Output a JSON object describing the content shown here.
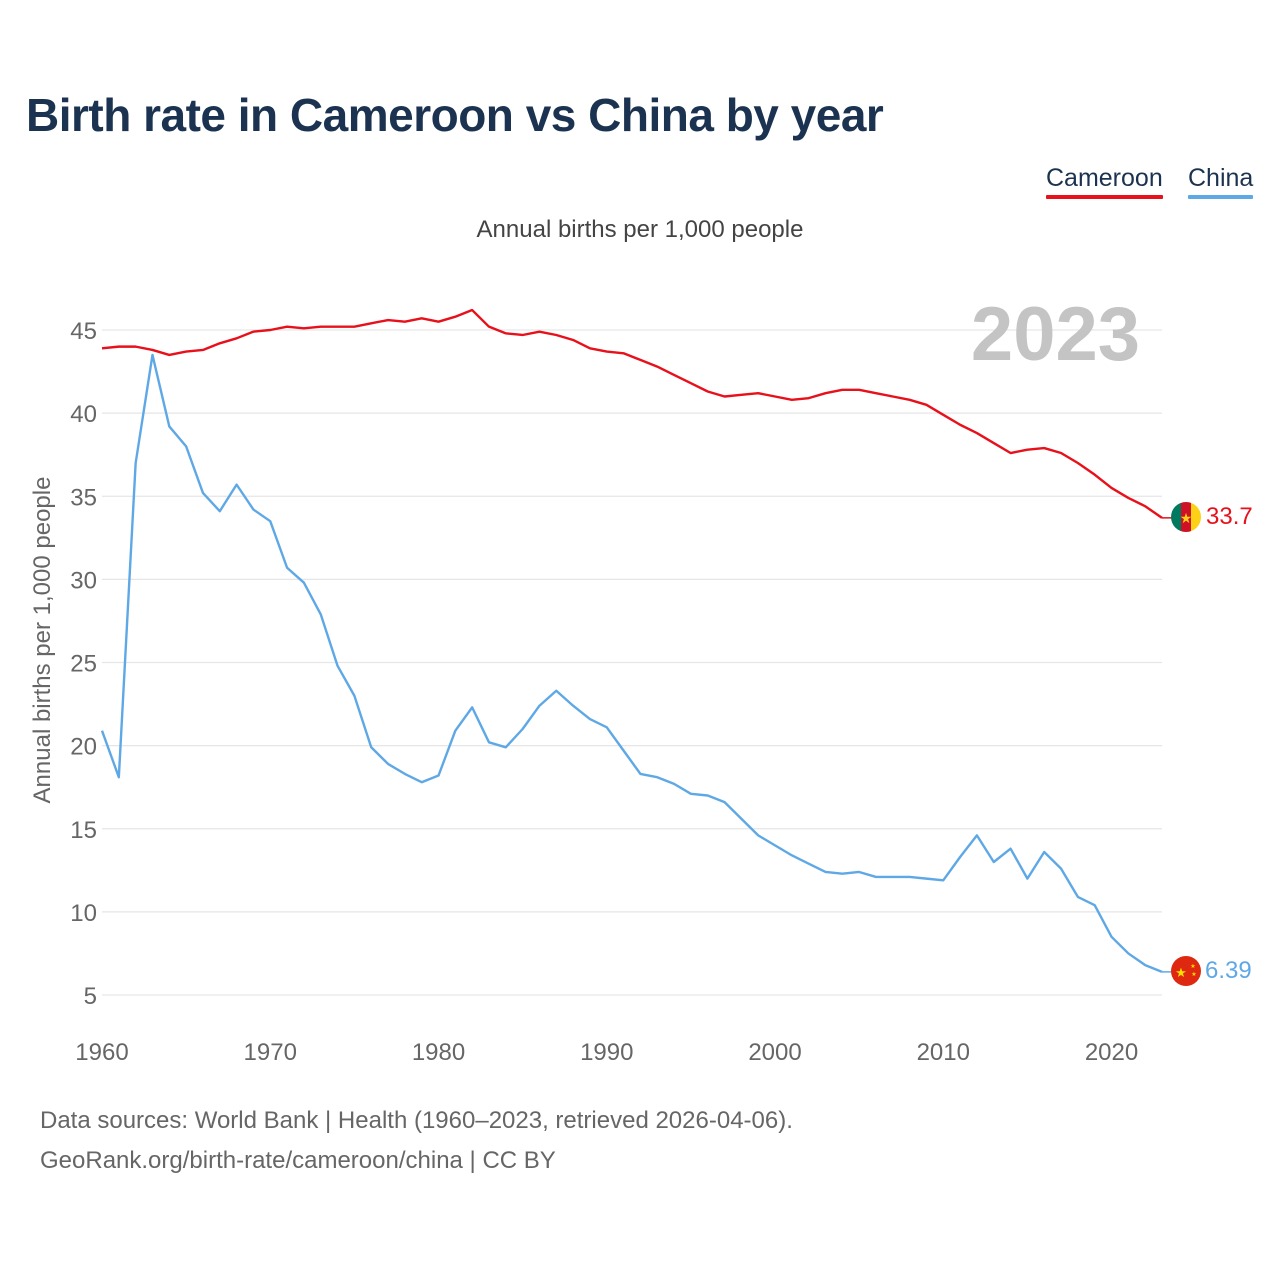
{
  "colors": {
    "title": "#1b3350",
    "cameroon": "#e8101a",
    "china": "#5fa8e6",
    "grid": "#e6e6e6",
    "axis_text": "#666666",
    "year_watermark": "#c4c4c4"
  },
  "header": {
    "title": "Birth rate in Cameroon vs China by year",
    "subtitle": "Annual births per 1,000 people"
  },
  "legend": {
    "cameroon": "Cameroon",
    "china": "China"
  },
  "footer": {
    "source": "Data sources: World Bank | Health (1960–2023, retrieved 2026-04-06).",
    "credit": "GeoRank.org/birth-rate/cameroon/china | CC BY"
  },
  "chart_data": {
    "type": "line",
    "title": "Birth rate in Cameroon vs China by year",
    "subtitle": "Annual births per 1,000 people",
    "xlabel": "",
    "ylabel": "Annual births per 1,000 people",
    "xlim": [
      1960,
      2023
    ],
    "ylim": [
      4,
      48
    ],
    "x_ticks": [
      1960,
      1970,
      1980,
      1990,
      2000,
      2010,
      2020
    ],
    "y_ticks": [
      5,
      10,
      15,
      20,
      25,
      30,
      35,
      40,
      45
    ],
    "grid": true,
    "current_year_label": "2023",
    "x": [
      1960,
      1961,
      1962,
      1963,
      1964,
      1965,
      1966,
      1967,
      1968,
      1969,
      1970,
      1971,
      1972,
      1973,
      1974,
      1975,
      1976,
      1977,
      1978,
      1979,
      1980,
      1981,
      1982,
      1983,
      1984,
      1985,
      1986,
      1987,
      1988,
      1989,
      1990,
      1991,
      1992,
      1993,
      1994,
      1995,
      1996,
      1997,
      1998,
      1999,
      2000,
      2001,
      2002,
      2003,
      2004,
      2005,
      2006,
      2007,
      2008,
      2009,
      2010,
      2011,
      2012,
      2013,
      2014,
      2015,
      2016,
      2017,
      2018,
      2019,
      2020,
      2021,
      2022,
      2023
    ],
    "series": [
      {
        "name": "Cameroon",
        "color": "#e8101a",
        "end_label": "33.7",
        "values": [
          43.9,
          44.0,
          44.0,
          43.8,
          43.5,
          43.7,
          43.8,
          44.2,
          44.5,
          44.9,
          45.0,
          45.2,
          45.1,
          45.2,
          45.2,
          45.2,
          45.4,
          45.6,
          45.5,
          45.7,
          45.5,
          45.8,
          46.2,
          45.2,
          44.8,
          44.7,
          44.9,
          44.7,
          44.4,
          43.9,
          43.7,
          43.6,
          43.2,
          42.8,
          42.3,
          41.8,
          41.3,
          41.0,
          41.1,
          41.2,
          41.0,
          40.8,
          40.9,
          41.2,
          41.4,
          41.4,
          41.2,
          41.0,
          40.8,
          40.5,
          39.9,
          39.3,
          38.8,
          38.2,
          37.6,
          37.8,
          37.9,
          37.6,
          37.0,
          36.3,
          35.5,
          34.9,
          34.4,
          33.7
        ]
      },
      {
        "name": "China",
        "color": "#5fa8e6",
        "end_label": "6.39",
        "values": [
          20.9,
          18.1,
          37.0,
          43.5,
          39.2,
          38.0,
          35.2,
          34.1,
          35.7,
          34.2,
          33.5,
          30.7,
          29.8,
          27.9,
          24.8,
          23.0,
          19.9,
          18.9,
          18.3,
          17.8,
          18.2,
          20.9,
          22.3,
          20.2,
          19.9,
          21.0,
          22.4,
          23.3,
          22.4,
          21.6,
          21.1,
          19.7,
          18.3,
          18.1,
          17.7,
          17.1,
          17.0,
          16.6,
          15.6,
          14.6,
          14.0,
          13.4,
          12.9,
          12.4,
          12.3,
          12.4,
          12.1,
          12.1,
          12.1,
          12.0,
          11.9,
          13.3,
          14.6,
          13.0,
          13.8,
          12.0,
          13.6,
          12.6,
          10.9,
          10.4,
          8.5,
          7.5,
          6.8,
          6.39
        ]
      }
    ]
  }
}
